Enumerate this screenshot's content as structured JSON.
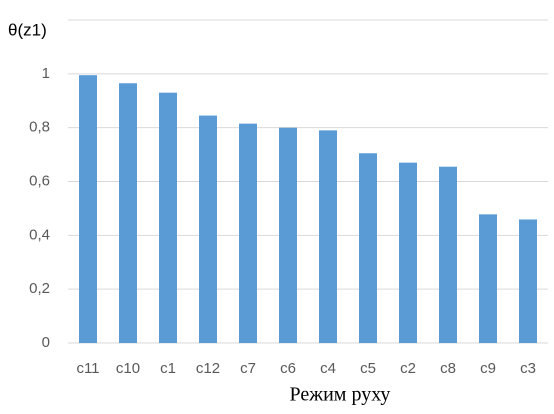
{
  "chart_data": {
    "type": "bar",
    "y_label": "θ(z1)",
    "x_label": "Режим руху",
    "categories": [
      "c11",
      "c10",
      "c1",
      "c12",
      "c7",
      "c6",
      "c4",
      "c5",
      "c2",
      "c8",
      "c9",
      "c3"
    ],
    "values": [
      0.995,
      0.965,
      0.93,
      0.845,
      0.815,
      0.8,
      0.79,
      0.705,
      0.67,
      0.655,
      0.478,
      0.459
    ],
    "color": "#5b9bd5",
    "ylim": [
      0,
      1.2
    ],
    "yticks": [
      0,
      {
        "value": 0.2,
        "label": "0,2"
      },
      {
        "value": 0.4,
        "label": "0,4"
      },
      {
        "value": 0.6,
        "label": "0,6"
      },
      {
        "value": 0.8,
        "label": "0,8"
      },
      1
    ],
    "grid": true
  }
}
